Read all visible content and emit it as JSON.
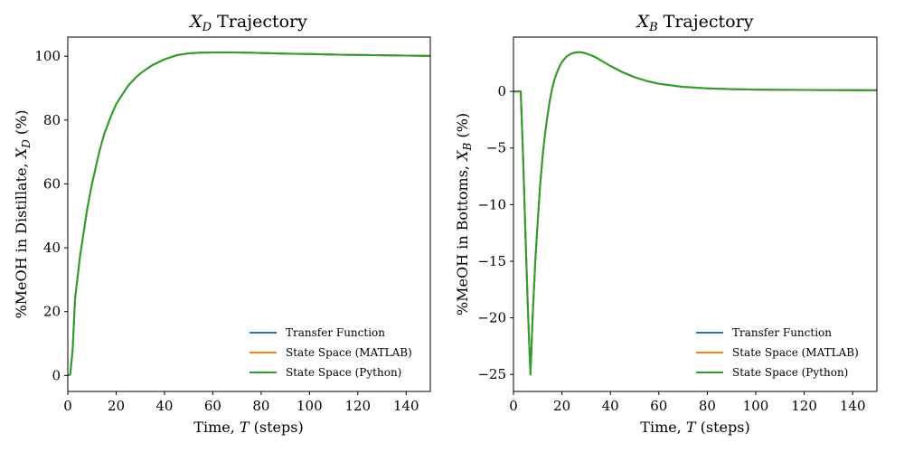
{
  "chart_data": [
    {
      "type": "line",
      "title": "X_D Trajectory",
      "title_main": "X",
      "title_sub": "D",
      "title_rest": " Trajectory",
      "xlabel": "Time, T (steps)",
      "xlabel_pre": "Time, ",
      "xlabel_var": "T",
      "xlabel_post": " (steps)",
      "ylabel": "%MeOH in Distillate, X_D (%)",
      "ylabel_pre": "%MeOH in Distillate, ",
      "ylabel_var": "X",
      "ylabel_sub": "D",
      "ylabel_post": " (%)",
      "xlim": [
        0,
        150
      ],
      "ylim": [
        -5,
        106
      ],
      "xticks": [
        0,
        20,
        40,
        60,
        80,
        100,
        120,
        140
      ],
      "yticks": [
        0,
        20,
        40,
        60,
        80,
        100
      ],
      "grid": false,
      "legend_position": "lower-right",
      "series": [
        {
          "name": "Transfer Function",
          "color": "#1f77b4",
          "x": [
            0,
            1,
            2,
            3,
            5,
            8,
            10,
            13,
            15,
            18,
            20,
            23,
            25,
            28,
            30,
            33,
            35,
            38,
            40,
            45,
            50,
            55,
            60,
            65,
            70,
            80,
            90,
            100,
            110,
            120,
            130,
            140,
            150
          ],
          "y": [
            0,
            0.3,
            8,
            24,
            37,
            52,
            60,
            70,
            75.5,
            81.5,
            85,
            88.5,
            90.8,
            93.2,
            94.6,
            96.2,
            97.2,
            98.3,
            99,
            100.3,
            100.9,
            101.1,
            101.2,
            101.2,
            101.2,
            101,
            100.8,
            100.7,
            100.5,
            100.4,
            100.3,
            100.2,
            100.1
          ]
        },
        {
          "name": "State Space (MATLAB)",
          "color": "#ff7f0e",
          "x": [
            0,
            1,
            2,
            3,
            5,
            8,
            10,
            13,
            15,
            18,
            20,
            23,
            25,
            28,
            30,
            33,
            35,
            38,
            40,
            45,
            50,
            55,
            60,
            65,
            70,
            80,
            90,
            100,
            110,
            120,
            130,
            140,
            150
          ],
          "y": [
            0,
            0.3,
            8,
            24,
            37,
            52,
            60,
            70,
            75.5,
            81.5,
            85,
            88.5,
            90.8,
            93.2,
            94.6,
            96.2,
            97.2,
            98.3,
            99,
            100.3,
            100.9,
            101.1,
            101.2,
            101.2,
            101.2,
            101,
            100.8,
            100.7,
            100.5,
            100.4,
            100.3,
            100.2,
            100.1
          ]
        },
        {
          "name": "State Space (Python)",
          "color": "#2ca02c",
          "x": [
            0,
            1,
            2,
            3,
            5,
            8,
            10,
            13,
            15,
            18,
            20,
            23,
            25,
            28,
            30,
            33,
            35,
            38,
            40,
            45,
            50,
            55,
            60,
            65,
            70,
            80,
            90,
            100,
            110,
            120,
            130,
            140,
            150
          ],
          "y": [
            0,
            0.3,
            8,
            24,
            37,
            52,
            60,
            70,
            75.5,
            81.5,
            85,
            88.5,
            90.8,
            93.2,
            94.6,
            96.2,
            97.2,
            98.3,
            99,
            100.3,
            100.9,
            101.1,
            101.2,
            101.2,
            101.2,
            101,
            100.8,
            100.7,
            100.5,
            100.4,
            100.3,
            100.2,
            100.1
          ]
        }
      ]
    },
    {
      "type": "line",
      "title": "X_B Trajectory",
      "title_main": "X",
      "title_sub": "B",
      "title_rest": " Trajectory",
      "xlabel": "Time, T (steps)",
      "xlabel_pre": "Time, ",
      "xlabel_var": "T",
      "xlabel_post": " (steps)",
      "ylabel": "%MeOH in Bottoms, X_B (%)",
      "ylabel_pre": "%MeOH in Bottoms, ",
      "ylabel_var": "X",
      "ylabel_sub": "B",
      "ylabel_post": " (%)",
      "xlim": [
        0,
        150
      ],
      "ylim": [
        -26.5,
        4.8
      ],
      "xticks": [
        0,
        20,
        40,
        60,
        80,
        100,
        120,
        140
      ],
      "yticks": [
        0,
        -5,
        -10,
        -15,
        -20,
        -25
      ],
      "ytick_labels": [
        "0",
        "−5",
        "−10",
        "−15",
        "−20",
        "−25"
      ],
      "grid": false,
      "legend_position": "lower-right",
      "series": [
        {
          "name": "Transfer Function",
          "color": "#1f77b4",
          "x": [
            0,
            1,
            2,
            3,
            4,
            5,
            6,
            7,
            8,
            9,
            10,
            11,
            12,
            13,
            14,
            15,
            16,
            17,
            18,
            19,
            20,
            22,
            24,
            26,
            28,
            30,
            32,
            34,
            36,
            38,
            40,
            45,
            50,
            55,
            60,
            70,
            80,
            90,
            100,
            110,
            120,
            130,
            140,
            150
          ],
          "y": [
            0,
            0,
            0,
            0,
            -6,
            -13,
            -19.5,
            -25,
            -19.5,
            -15,
            -11.5,
            -8.3,
            -5.8,
            -3.8,
            -2.2,
            -0.8,
            0.3,
            1.1,
            1.7,
            2.2,
            2.6,
            3.1,
            3.35,
            3.45,
            3.45,
            3.35,
            3.2,
            3.0,
            2.75,
            2.5,
            2.25,
            1.7,
            1.25,
            0.92,
            0.68,
            0.4,
            0.27,
            0.2,
            0.16,
            0.14,
            0.13,
            0.12,
            0.11,
            0.1
          ]
        },
        {
          "name": "State Space (MATLAB)",
          "color": "#ff7f0e",
          "x": [
            0,
            1,
            2,
            3,
            4,
            5,
            6,
            7,
            8,
            9,
            10,
            11,
            12,
            13,
            14,
            15,
            16,
            17,
            18,
            19,
            20,
            22,
            24,
            26,
            28,
            30,
            32,
            34,
            36,
            38,
            40,
            45,
            50,
            55,
            60,
            70,
            80,
            90,
            100,
            110,
            120,
            130,
            140,
            150
          ],
          "y": [
            0,
            0,
            0,
            0,
            -6,
            -13,
            -19.5,
            -25,
            -19.5,
            -15,
            -11.5,
            -8.3,
            -5.8,
            -3.8,
            -2.2,
            -0.8,
            0.3,
            1.1,
            1.7,
            2.2,
            2.6,
            3.1,
            3.35,
            3.45,
            3.45,
            3.35,
            3.2,
            3.0,
            2.75,
            2.5,
            2.25,
            1.7,
            1.25,
            0.92,
            0.68,
            0.4,
            0.27,
            0.2,
            0.16,
            0.14,
            0.13,
            0.12,
            0.11,
            0.1
          ]
        },
        {
          "name": "State Space (Python)",
          "color": "#2ca02c",
          "x": [
            0,
            1,
            2,
            3,
            4,
            5,
            6,
            7,
            8,
            9,
            10,
            11,
            12,
            13,
            14,
            15,
            16,
            17,
            18,
            19,
            20,
            22,
            24,
            26,
            28,
            30,
            32,
            34,
            36,
            38,
            40,
            45,
            50,
            55,
            60,
            70,
            80,
            90,
            100,
            110,
            120,
            130,
            140,
            150
          ],
          "y": [
            0,
            0,
            0,
            0,
            -6,
            -13,
            -19.5,
            -25,
            -19.5,
            -15,
            -11.5,
            -8.3,
            -5.8,
            -3.8,
            -2.2,
            -0.8,
            0.3,
            1.1,
            1.7,
            2.2,
            2.6,
            3.1,
            3.35,
            3.45,
            3.45,
            3.35,
            3.2,
            3.0,
            2.75,
            2.5,
            2.25,
            1.7,
            1.25,
            0.92,
            0.68,
            0.4,
            0.27,
            0.2,
            0.16,
            0.14,
            0.13,
            0.12,
            0.11,
            0.1
          ]
        }
      ]
    }
  ]
}
